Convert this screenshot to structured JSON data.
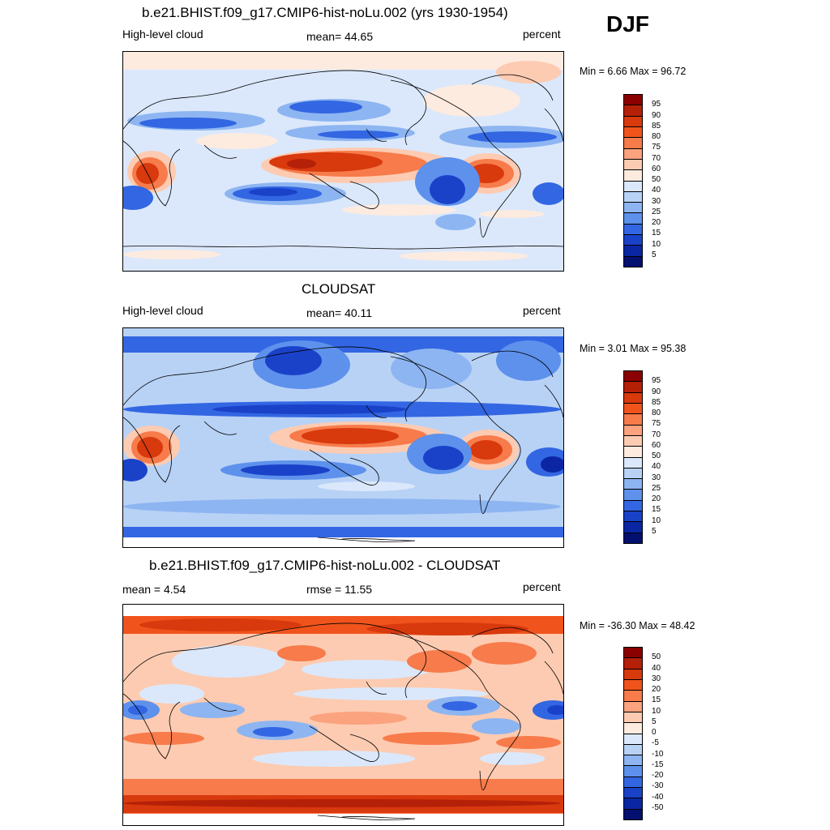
{
  "season": "DJF",
  "panels": [
    {
      "title": "b.e21.BHIST.f09_g17.CMIP6-hist-noLu.002 (yrs 1930-1954)",
      "left_label": "High-level cloud",
      "center_label": "mean=  44.65",
      "right_label": "percent",
      "minmax": "Min =   6.66 Max =  96.72",
      "colorbar": {
        "labels": [
          "95",
          "90",
          "85",
          "80",
          "75",
          "70",
          "60",
          "50",
          "40",
          "30",
          "25",
          "20",
          "15",
          "10",
          "5"
        ],
        "colors": [
          "#8b0000",
          "#b52008",
          "#d8390d",
          "#f0541c",
          "#f77b4b",
          "#fba27e",
          "#fdcbb1",
          "#fdebe0",
          "#dbe8fb",
          "#b8d2f6",
          "#8db5f1",
          "#5d91ec",
          "#3366e2",
          "#1a42c9",
          "#0b26a3",
          "#04106f"
        ]
      }
    },
    {
      "title": "CLOUDSAT",
      "left_label": "High-level cloud",
      "center_label": "mean=  40.11",
      "right_label": "percent",
      "minmax": "Min =   3.01 Max =  95.38",
      "colorbar": {
        "labels": [
          "95",
          "90",
          "85",
          "80",
          "75",
          "70",
          "60",
          "50",
          "40",
          "30",
          "25",
          "20",
          "15",
          "10",
          "5"
        ],
        "colors": [
          "#8b0000",
          "#b52008",
          "#d8390d",
          "#f0541c",
          "#f77b4b",
          "#fba27e",
          "#fdcbb1",
          "#fdebe0",
          "#dbe8fb",
          "#b8d2f6",
          "#8db5f1",
          "#5d91ec",
          "#3366e2",
          "#1a42c9",
          "#0b26a3",
          "#04106f"
        ]
      }
    },
    {
      "title": "b.e21.BHIST.f09_g17.CMIP6-hist-noLu.002 - CLOUDSAT",
      "left_label": "mean =   4.54",
      "center_label": "rmse =  11.55",
      "right_label": "percent",
      "minmax": "Min = -36.30 Max =  48.42",
      "colorbar": {
        "labels": [
          "50",
          "40",
          "30",
          "20",
          "15",
          "10",
          "5",
          "0",
          "-5",
          "-10",
          "-15",
          "-20",
          "-30",
          "-40",
          "-50"
        ],
        "colors": [
          "#8b0000",
          "#b52008",
          "#d8390d",
          "#f0541c",
          "#f77b4b",
          "#fba27e",
          "#fdcbb1",
          "#fdebe0",
          "#dbe8fb",
          "#b8d2f6",
          "#8db5f1",
          "#5d91ec",
          "#3366e2",
          "#1a42c9",
          "#0b26a3",
          "#04106f"
        ]
      }
    }
  ]
}
